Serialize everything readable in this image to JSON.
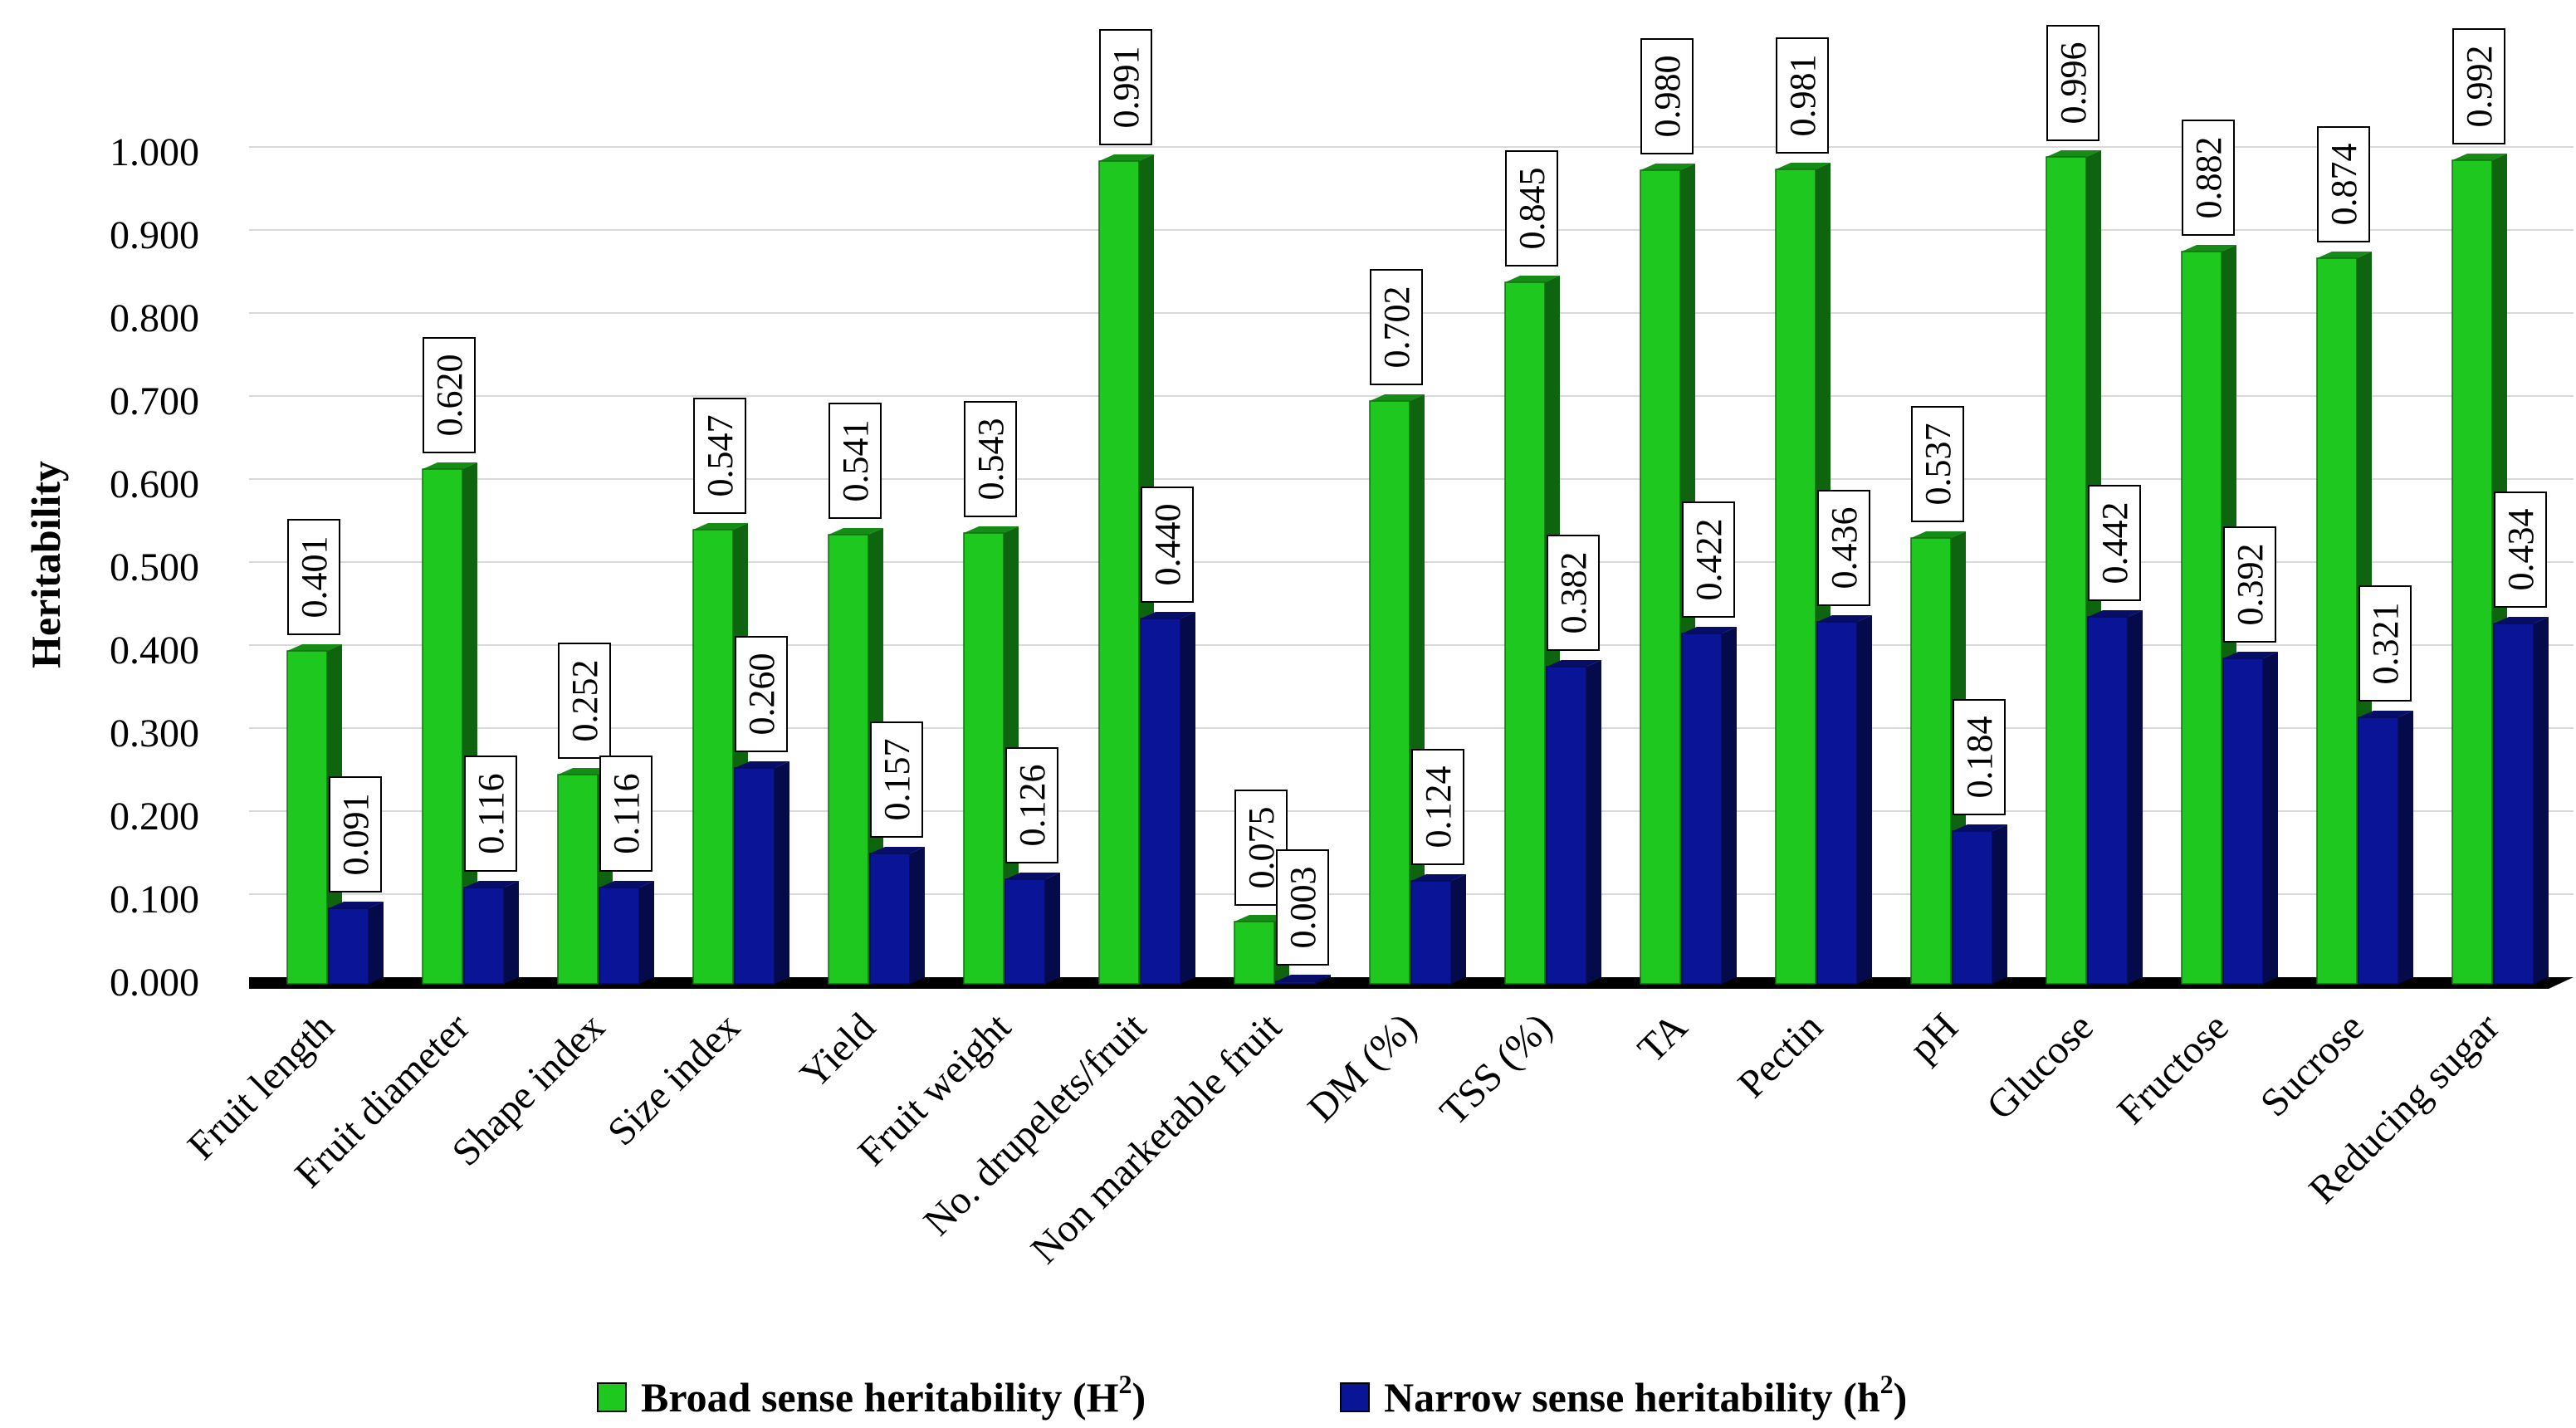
{
  "chart_data": {
    "type": "bar",
    "ylabel": "Heritability",
    "xlabel": "",
    "ylim": [
      0,
      1.0
    ],
    "yticks": [
      "0.000",
      "0.100",
      "0.200",
      "0.300",
      "0.400",
      "0.500",
      "0.600",
      "0.700",
      "0.800",
      "0.900",
      "1.000"
    ],
    "categories": [
      "Fruit length",
      "Fruit diameter",
      "Shape index",
      "Size index",
      "Yield",
      "Fruit weight",
      "No. drupelets/fruit",
      "Non marketable fruit",
      "DM (%)",
      "TSS (%)",
      "TA",
      "Pectin",
      "pH",
      "Glucose",
      "Fructose",
      "Sucrose",
      "Reducing sugar"
    ],
    "series": [
      {
        "name": "Broad sense heritability (H",
        "sup": "2",
        "color": "#1ec81e",
        "values": [
          0.401,
          0.62,
          0.252,
          0.547,
          0.541,
          0.543,
          0.991,
          0.075,
          0.702,
          0.845,
          0.98,
          0.981,
          0.537,
          0.996,
          0.882,
          0.874,
          0.992
        ],
        "labels": [
          "0.401",
          "0.620",
          "0.252",
          "0.547",
          "0.541",
          "0.543",
          "0.991",
          "0.075",
          "0.702",
          "0.845",
          "0.980",
          "0.981",
          "0.537",
          "0.996",
          "0.882",
          "0.874",
          "0.992"
        ]
      },
      {
        "name": "Narrow sense heritability (h",
        "sup": "2",
        "color": "#0a1496",
        "values": [
          0.091,
          0.116,
          0.116,
          0.26,
          0.157,
          0.126,
          0.44,
          0.003,
          0.124,
          0.382,
          0.422,
          0.436,
          0.184,
          0.442,
          0.392,
          0.321,
          0.434
        ],
        "labels": [
          "0.091",
          "0.116",
          "0.116",
          "0.260",
          "0.157",
          "0.126",
          "0.440",
          "0.003",
          "0.124",
          "0.382",
          "0.422",
          "0.436",
          "0.184",
          "0.442",
          "0.392",
          "0.321",
          "0.434"
        ]
      }
    ],
    "legend_position": "bottom",
    "grid": true
  }
}
